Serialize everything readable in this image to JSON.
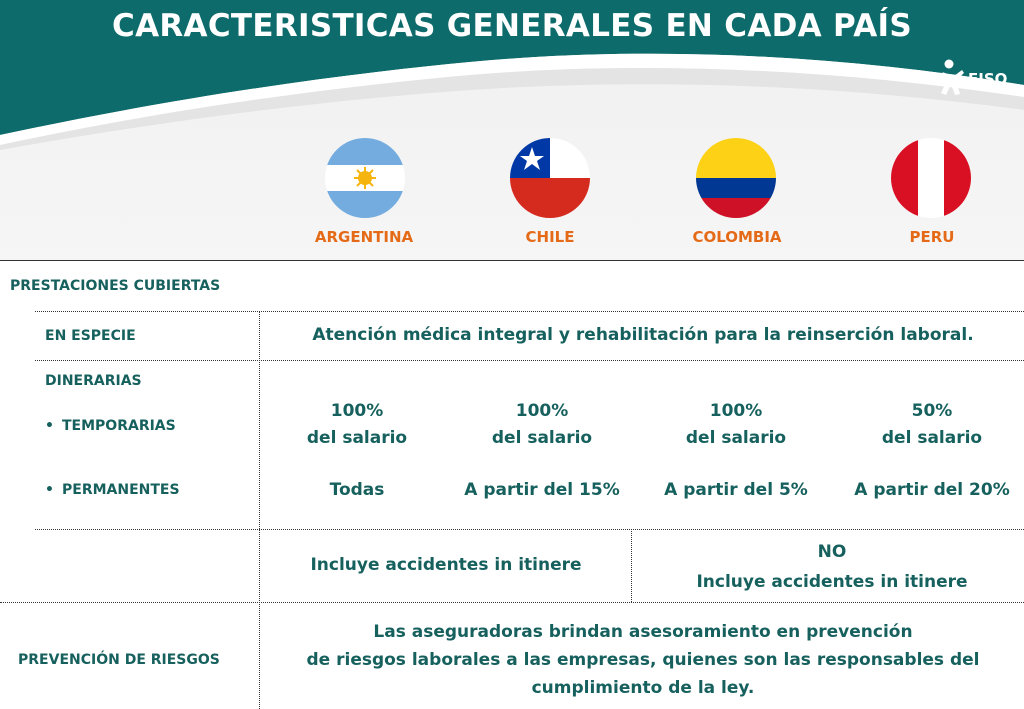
{
  "header": {
    "title": "CARACTERISTICAS GENERALES EN CADA PAÍS",
    "logo_text": "FISO"
  },
  "countries": [
    {
      "name": "ARGENTINA",
      "flag": "argentina-flag"
    },
    {
      "name": "CHILE",
      "flag": "chile-flag"
    },
    {
      "name": "COLOMBIA",
      "flag": "colombia-flag"
    },
    {
      "name": "PERU",
      "flag": "peru-flag"
    }
  ],
  "sections": {
    "prestaciones": "PRESTACIONES CUBIERTAS",
    "en_especie": "EN ESPECIE",
    "en_especie_value": "Atención médica integral y rehabilitación para la reinserción laboral.",
    "dinerarias": "DINERARIAS",
    "temporarias": "TEMPORARIAS",
    "permanentes": "PERMANENTES",
    "prevencion": "PREVENCIÓN DE RIESGOS"
  },
  "temporarias": [
    {
      "pct": "100%",
      "text": "del salario"
    },
    {
      "pct": "100%",
      "text": "del salario"
    },
    {
      "pct": "100%",
      "text": "del salario"
    },
    {
      "pct": "50%",
      "text": "del salario"
    }
  ],
  "permanentes": [
    "Todas",
    "A partir del 15%",
    "A partir del 5%",
    "A partir del 20%"
  ],
  "itinere": {
    "left": "Incluye accidentes in itinere",
    "right_line1": "NO",
    "right_line2": "Incluye accidentes in itinere"
  },
  "prevencion": {
    "line1": "Las aseguradoras brindan asesoramiento en prevención",
    "line2": "de riesgos laborales a las empresas, quienes son las responsables del",
    "line3": "cumplimiento de la ley."
  },
  "colors": {
    "teal": "#0e6b6b",
    "text_teal": "#16605e",
    "orange": "#e56a17"
  }
}
